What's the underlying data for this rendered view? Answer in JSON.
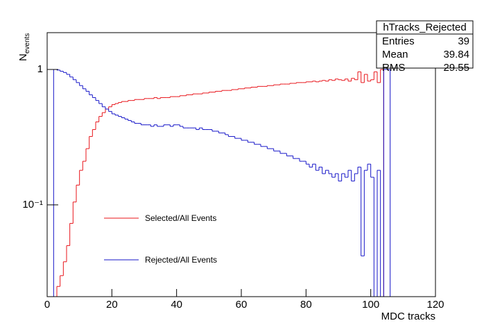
{
  "chart_data": {
    "type": "histogram",
    "x_label": "MDC tracks",
    "y_label": "N",
    "y_label_sub": "events",
    "log_y": true,
    "xlim": [
      0,
      120
    ],
    "xticks": [
      0,
      20,
      40,
      60,
      80,
      100,
      120
    ],
    "ylim": [
      0.021,
      1.87
    ],
    "yticks": [
      {
        "value": 0.1,
        "label": "10⁻¹"
      },
      1
    ],
    "bins": [
      0,
      1,
      2,
      3,
      4,
      5,
      6,
      7,
      8,
      9,
      10,
      11,
      12,
      13,
      14,
      15,
      16,
      17,
      18,
      19,
      20,
      21,
      22,
      23,
      24,
      25,
      26,
      27,
      28,
      29,
      30,
      31,
      32,
      33,
      34,
      35,
      36,
      37,
      38,
      39,
      40,
      41,
      42,
      43,
      44,
      45,
      46,
      47,
      48,
      49,
      50,
      51,
      52,
      53,
      54,
      55,
      56,
      57,
      58,
      59,
      60,
      61,
      62,
      63,
      64,
      65,
      66,
      67,
      68,
      69,
      70,
      71,
      72,
      73,
      74,
      75,
      76,
      77,
      78,
      79,
      80,
      81,
      82,
      83,
      84,
      85,
      86,
      87,
      88,
      89,
      90,
      91,
      92,
      93,
      94,
      95,
      96,
      97,
      98,
      99,
      100,
      101,
      102,
      103,
      104,
      105,
      106,
      107,
      108,
      109,
      110,
      111,
      112,
      113,
      114,
      115,
      116,
      117,
      118,
      119,
      120
    ],
    "series": [
      {
        "name": "Selected/All Events",
        "color": "#e8141a",
        "values": [
          0,
          0,
          0.018,
          0.025,
          0.03,
          0.038,
          0.05,
          0.073,
          0.105,
          0.14,
          0.18,
          0.21,
          0.26,
          0.32,
          0.36,
          0.41,
          0.45,
          0.48,
          0.51,
          0.53,
          0.55,
          0.56,
          0.57,
          0.58,
          0.58,
          0.59,
          0.59,
          0.6,
          0.6,
          0.6,
          0.61,
          0.61,
          0.61,
          0.62,
          0.61,
          0.62,
          0.62,
          0.62,
          0.63,
          0.63,
          0.63,
          0.64,
          0.64,
          0.65,
          0.65,
          0.66,
          0.66,
          0.66,
          0.67,
          0.67,
          0.68,
          0.68,
          0.69,
          0.69,
          0.7,
          0.7,
          0.7,
          0.71,
          0.71,
          0.72,
          0.72,
          0.73,
          0.73,
          0.74,
          0.74,
          0.75,
          0.75,
          0.75,
          0.76,
          0.76,
          0.77,
          0.77,
          0.78,
          0.78,
          0.78,
          0.79,
          0.79,
          0.8,
          0.8,
          0.8,
          0.81,
          0.81,
          0.82,
          0.81,
          0.82,
          0.83,
          0.82,
          0.84,
          0.83,
          0.85,
          0.84,
          0.83,
          0.85,
          0.82,
          0.86,
          0.84,
          0.96,
          0.8,
          0.92,
          0.82,
          0.84,
          0.96,
          0.8,
          1.0,
          0,
          0,
          0,
          0,
          0,
          0,
          0,
          0,
          0,
          0,
          0,
          0,
          0,
          0,
          0,
          0
        ]
      },
      {
        "name": "Rejected/All Events",
        "color": "#1414c8",
        "values": [
          0,
          0,
          1.0,
          0.99,
          0.97,
          0.95,
          0.92,
          0.88,
          0.84,
          0.8,
          0.76,
          0.72,
          0.69,
          0.65,
          0.62,
          0.59,
          0.56,
          0.53,
          0.51,
          0.49,
          0.47,
          0.46,
          0.45,
          0.44,
          0.43,
          0.42,
          0.41,
          0.4,
          0.4,
          0.39,
          0.39,
          0.39,
          0.38,
          0.39,
          0.38,
          0.38,
          0.39,
          0.39,
          0.38,
          0.39,
          0.39,
          0.38,
          0.37,
          0.37,
          0.37,
          0.37,
          0.36,
          0.37,
          0.36,
          0.36,
          0.36,
          0.35,
          0.35,
          0.34,
          0.34,
          0.33,
          0.32,
          0.32,
          0.31,
          0.31,
          0.3,
          0.3,
          0.29,
          0.29,
          0.28,
          0.28,
          0.27,
          0.27,
          0.26,
          0.26,
          0.25,
          0.25,
          0.24,
          0.24,
          0.23,
          0.23,
          0.22,
          0.22,
          0.21,
          0.21,
          0.2,
          0.19,
          0.2,
          0.18,
          0.19,
          0.17,
          0.18,
          0.17,
          0.16,
          0.17,
          0.15,
          0.17,
          0.16,
          0.18,
          0.15,
          0.17,
          0.19,
          0.042,
          0.18,
          0.2,
          0.16,
          0,
          0.18,
          0,
          1.0,
          1.0,
          0,
          0,
          0,
          0,
          0,
          0,
          0,
          0,
          0,
          0,
          0,
          0,
          0,
          0
        ]
      }
    ],
    "stats": {
      "title": "hTracks_Rejected",
      "rows": [
        [
          "Entries",
          "39"
        ],
        [
          "Mean",
          "39.84"
        ],
        [
          "RMS",
          "29.55"
        ]
      ]
    }
  }
}
